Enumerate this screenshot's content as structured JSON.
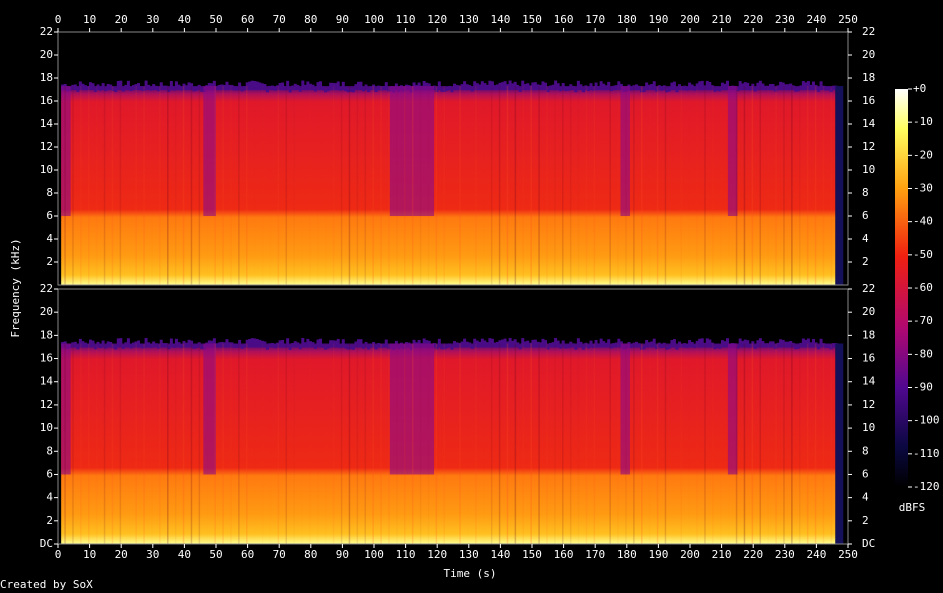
{
  "chart_data": {
    "type": "spectrogram",
    "x_label": "Time (s)",
    "y_label": "Frequency (kHz)",
    "xlim": [
      0,
      250
    ],
    "xticks": [
      0,
      10,
      20,
      30,
      40,
      50,
      60,
      70,
      80,
      90,
      100,
      110,
      120,
      130,
      140,
      150,
      160,
      170,
      180,
      190,
      200,
      210,
      220,
      230,
      240,
      250
    ],
    "channels": [
      {
        "ylim": [
          0,
          22
        ],
        "yticks": [
          2,
          4,
          6,
          8,
          10,
          12,
          14,
          16,
          18,
          20,
          22
        ]
      },
      {
        "ylim": [
          0,
          22
        ],
        "yticks": [
          {
            "value": 0,
            "label": "DC"
          },
          2,
          4,
          6,
          8,
          10,
          12,
          14,
          16,
          18,
          20,
          22
        ]
      }
    ],
    "colorbar": {
      "label": "dBFS",
      "lim": [
        -120,
        0
      ],
      "ticks": [
        {
          "value": 0,
          "label": "+0"
        },
        -10,
        -20,
        -30,
        -40,
        -50,
        -60,
        -70,
        -80,
        -90,
        -100,
        -110,
        -120
      ]
    },
    "footer": "Created by SoX"
  }
}
